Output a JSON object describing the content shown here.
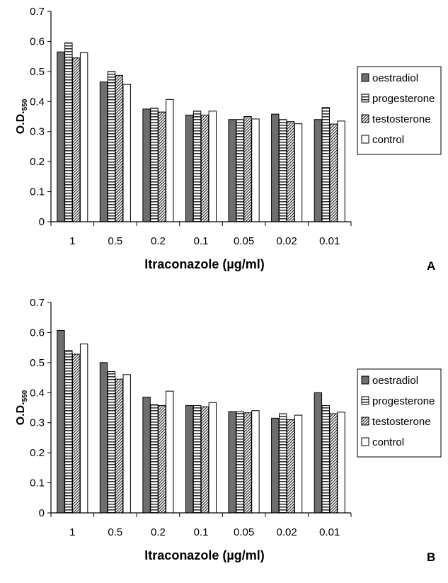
{
  "chart_data": [
    {
      "type": "bar",
      "panel_label": "A",
      "xlabel": "Itraconazole (µg/ml)",
      "ylabel_main": "O.D.",
      "ylabel_sub": "550",
      "ylim": [
        0,
        0.7
      ],
      "yticks": [
        "0",
        "0.1",
        "0.2",
        "0.3",
        "0.4",
        "0.5",
        "0.6",
        "0.7"
      ],
      "categories": [
        "1",
        "0.5",
        "0.2",
        "0.1",
        "0.05",
        "0.02",
        "0.01"
      ],
      "legend_position": "right",
      "grid": false,
      "series": [
        {
          "name": "oestradiol",
          "fill": "solid",
          "color": "#6e6e6e",
          "values": [
            0.565,
            0.465,
            0.375,
            0.355,
            0.34,
            0.358,
            0.34
          ]
        },
        {
          "name": "progesterone",
          "fill": "horizontal-stripes",
          "color": "#333333",
          "values": [
            0.595,
            0.5,
            0.378,
            0.368,
            0.34,
            0.34,
            0.38
          ]
        },
        {
          "name": "testosterone",
          "fill": "diagonal-stripes",
          "color": "#333333",
          "values": [
            0.545,
            0.487,
            0.365,
            0.355,
            0.35,
            0.333,
            0.325
          ]
        },
        {
          "name": "control",
          "fill": "white",
          "color": "#ffffff",
          "values": [
            0.562,
            0.457,
            0.407,
            0.368,
            0.342,
            0.326,
            0.335
          ]
        }
      ]
    },
    {
      "type": "bar",
      "panel_label": "B",
      "xlabel": "Itraconazole (µg/ml)",
      "ylabel_main": "O.D.",
      "ylabel_sub": "550",
      "ylim": [
        0,
        0.7
      ],
      "yticks": [
        "0",
        "0.1",
        "0.2",
        "0.3",
        "0.4",
        "0.5",
        "0.6",
        "0.7"
      ],
      "categories": [
        "1",
        "0.5",
        "0.2",
        "0.1",
        "0.05",
        "0.02",
        "0.01"
      ],
      "legend_position": "right",
      "grid": false,
      "series": [
        {
          "name": "oestradiol",
          "fill": "solid",
          "color": "#6e6e6e",
          "values": [
            0.607,
            0.5,
            0.385,
            0.357,
            0.337,
            0.315,
            0.4
          ]
        },
        {
          "name": "progesterone",
          "fill": "horizontal-stripes",
          "color": "#333333",
          "values": [
            0.54,
            0.47,
            0.36,
            0.357,
            0.337,
            0.33,
            0.357
          ]
        },
        {
          "name": "testosterone",
          "fill": "diagonal-stripes",
          "color": "#333333",
          "values": [
            0.528,
            0.445,
            0.357,
            0.353,
            0.333,
            0.31,
            0.33
          ]
        },
        {
          "name": "control",
          "fill": "white",
          "color": "#ffffff",
          "values": [
            0.562,
            0.46,
            0.405,
            0.367,
            0.34,
            0.325,
            0.335
          ]
        }
      ]
    }
  ]
}
